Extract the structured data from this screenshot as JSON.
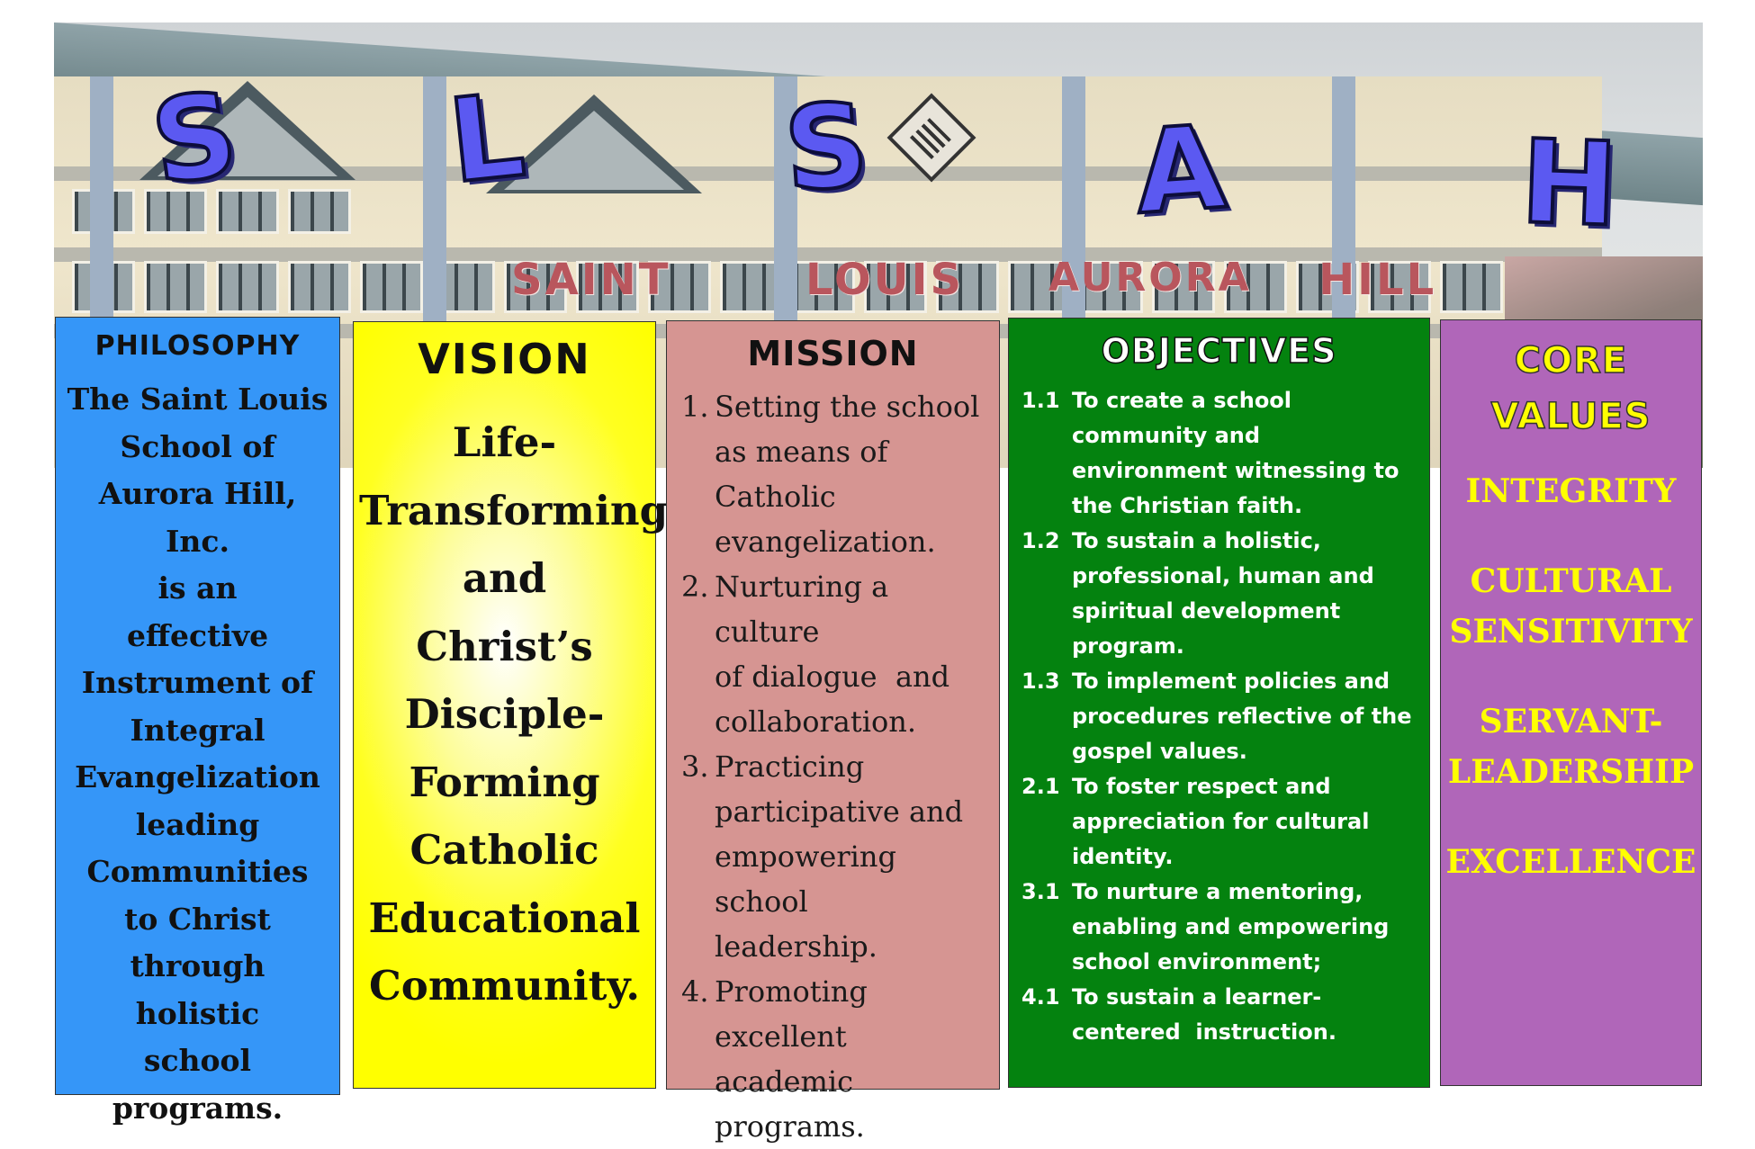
{
  "header": {
    "letters": [
      "S",
      "L",
      "S",
      "A",
      "H"
    ],
    "sign_words": [
      "SAINT",
      "LOUIS",
      "AURORA",
      "HILL"
    ]
  },
  "philosophy": {
    "title": "PHILOSOPHY",
    "lines": [
      "The Saint Louis",
      "School of",
      "Aurora Hill, Inc.",
      "is an",
      "effective",
      "Instrument of",
      "Integral",
      "Evangelization",
      "leading",
      "Communities",
      "to Christ",
      "through",
      "holistic",
      "school",
      "programs."
    ]
  },
  "vision": {
    "title": "VISION",
    "lines": [
      "Life-",
      "Transforming",
      "and",
      "Christ’s",
      "Disciple-",
      "Forming",
      "Catholic",
      "Educational",
      "Community."
    ]
  },
  "mission": {
    "title": "MISSION",
    "items": [
      {
        "num": "1.",
        "lines": [
          "Setting the school",
          "as means of",
          "Catholic",
          "evangelization."
        ]
      },
      {
        "num": "2.",
        "lines": [
          "Nurturing a culture",
          "of dialogue  and",
          "collaboration."
        ]
      },
      {
        "num": "3.",
        "lines": [
          "Practicing",
          "participative and",
          "empowering school",
          "leadership."
        ]
      },
      {
        "num": "4.",
        "lines": [
          "Promoting",
          "excellent academic",
          "programs."
        ]
      }
    ]
  },
  "objectives": {
    "title": "OBJECTIVES",
    "items": [
      {
        "num": "1.1",
        "text": "To create a school community and environment witnessing to the Christian faith."
      },
      {
        "num": "1.2",
        "text": "To sustain a holistic, professional, human and spiritual development program."
      },
      {
        "num": "1.3",
        "text": "To implement policies and procedures reflective of the gospel values."
      },
      {
        "num": "2.1",
        "text": "To foster respect and appreciation for cultural identity."
      },
      {
        "num": "3.1",
        "text": "To nurture a mentoring, enabling and empowering school environment;"
      },
      {
        "num": "4.1",
        "text": "To sustain a learner-centered  instruction."
      }
    ]
  },
  "core_values": {
    "title_lines": [
      "CORE",
      "VALUES"
    ],
    "values": [
      [
        "INTEGRITY"
      ],
      [
        "CULTURAL",
        "SENSITIVITY"
      ],
      [
        "SERVANT-",
        "LEADERSHIP"
      ],
      [
        "EXCELLENCE"
      ]
    ]
  },
  "colors": {
    "philosophy": "#3596f8",
    "vision": "#ffff00",
    "mission": "#d69592",
    "objectives": "#04820f",
    "core_values": "#b066b9",
    "letters": "#5b59f1",
    "sign": "#b9565d"
  }
}
